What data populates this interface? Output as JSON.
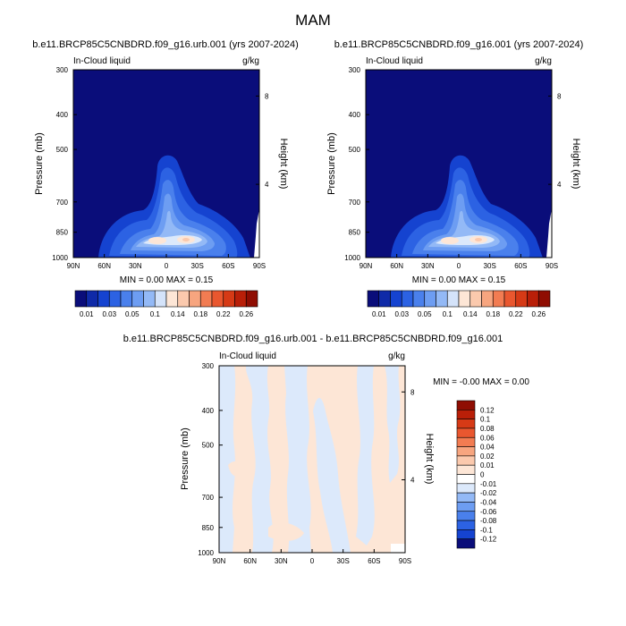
{
  "page_title": "MAM",
  "colors": {
    "zero_band": "#ffffff",
    "negative_ramp": [
      "#0a0d7a",
      "#0f2aa8",
      "#1543d0",
      "#2c62e3",
      "#4a80ec",
      "#6d9df2",
      "#93b9f6",
      "#bcd3f8",
      "#dce9fb"
    ],
    "positive_ramp": [
      "#fde6d6",
      "#fbc9ad",
      "#f7a57f",
      "#f27c52",
      "#e9572f",
      "#d63a16",
      "#b91f08",
      "#8f0d02"
    ]
  },
  "chart_data": [
    {
      "type": "heatmap",
      "title": "b.e11.BRCP85C5CNBDRD.f09_g16.urb.001 (yrs 2007-2024)",
      "variable": "In-Cloud liquid",
      "units": "g/kg",
      "ylabel": "Pressure (mb)",
      "ylabel_right": "Height (km)",
      "x_ticks": [
        "90N",
        "60N",
        "30N",
        "0",
        "30S",
        "60S",
        "90S"
      ],
      "y_ticks": [
        "300",
        "400",
        "500",
        "700",
        "850",
        "1000"
      ],
      "y_ticks_right": [
        "8",
        "4"
      ],
      "stats": "MIN =  0.00  MAX =  0.15",
      "colorbar_labels": [
        "0.01",
        "0.03",
        "0.05",
        "0.1",
        "0.14",
        "0.18",
        "0.22",
        "0.26"
      ],
      "colorbar_levels": [
        0.01,
        0.02,
        0.03,
        0.04,
        0.05,
        0.07,
        0.1,
        0.12,
        0.14,
        0.16,
        0.18,
        0.2,
        0.22,
        0.24,
        0.26
      ],
      "colorbar_colors": [
        "#0a0d7a",
        "#0f2aa8",
        "#1543d0",
        "#2c62e3",
        "#4a80ec",
        "#6d9df2",
        "#93b9f6",
        "#d4e3fa",
        "#fde6d6",
        "#fbc9ad",
        "#f7a57f",
        "#f27c52",
        "#e9572f",
        "#d63a16",
        "#b91f08",
        "#8f0d02"
      ]
    },
    {
      "type": "heatmap",
      "title": "b.e11.BRCP85C5CNBDRD.f09_g16.001 (yrs 2007-2024)",
      "variable": "In-Cloud liquid",
      "units": "g/kg",
      "ylabel": "Pressure (mb)",
      "ylabel_right": "Height (km)",
      "x_ticks": [
        "90N",
        "60N",
        "30N",
        "0",
        "30S",
        "60S",
        "90S"
      ],
      "y_ticks": [
        "300",
        "400",
        "500",
        "700",
        "850",
        "1000"
      ],
      "y_ticks_right": [
        "8",
        "4"
      ],
      "stats": "MIN =  0.00  MAX =  0.15",
      "colorbar_labels": [
        "0.01",
        "0.03",
        "0.05",
        "0.1",
        "0.14",
        "0.18",
        "0.22",
        "0.26"
      ]
    },
    {
      "type": "heatmap",
      "title": "b.e11.BRCP85C5CNBDRD.f09_g16.urb.001 - b.e11.BRCP85C5CNBDRD.f09_g16.001",
      "variable": "In-Cloud liquid",
      "units": "g/kg",
      "ylabel": "Pressure (mb)",
      "ylabel_right": "Height (km)",
      "x_ticks": [
        "90N",
        "60N",
        "30N",
        "0",
        "30S",
        "60S",
        "90S"
      ],
      "y_ticks": [
        "300",
        "400",
        "500",
        "700",
        "850",
        "1000"
      ],
      "y_ticks_right": [
        "8",
        "4"
      ],
      "stats": "MIN =  -0.00  MAX =  0.00",
      "colorbar_labels": [
        "0.12",
        "0.1",
        "0.08",
        "0.06",
        "0.04",
        "0.02",
        "0.01",
        "0",
        "-0.01",
        "-0.02",
        "-0.04",
        "-0.06",
        "-0.08",
        "-0.1",
        "-0.12"
      ],
      "colorbar_colors": [
        "#8f0d02",
        "#b91f08",
        "#d63a16",
        "#e9572f",
        "#f27c52",
        "#f7a57f",
        "#fbc9ad",
        "#fde6d6",
        "#ffffff",
        "#dce9fb",
        "#93b9f6",
        "#6d9df2",
        "#4a80ec",
        "#2c62e3",
        "#1543d0",
        "#0a0d7a"
      ]
    }
  ]
}
